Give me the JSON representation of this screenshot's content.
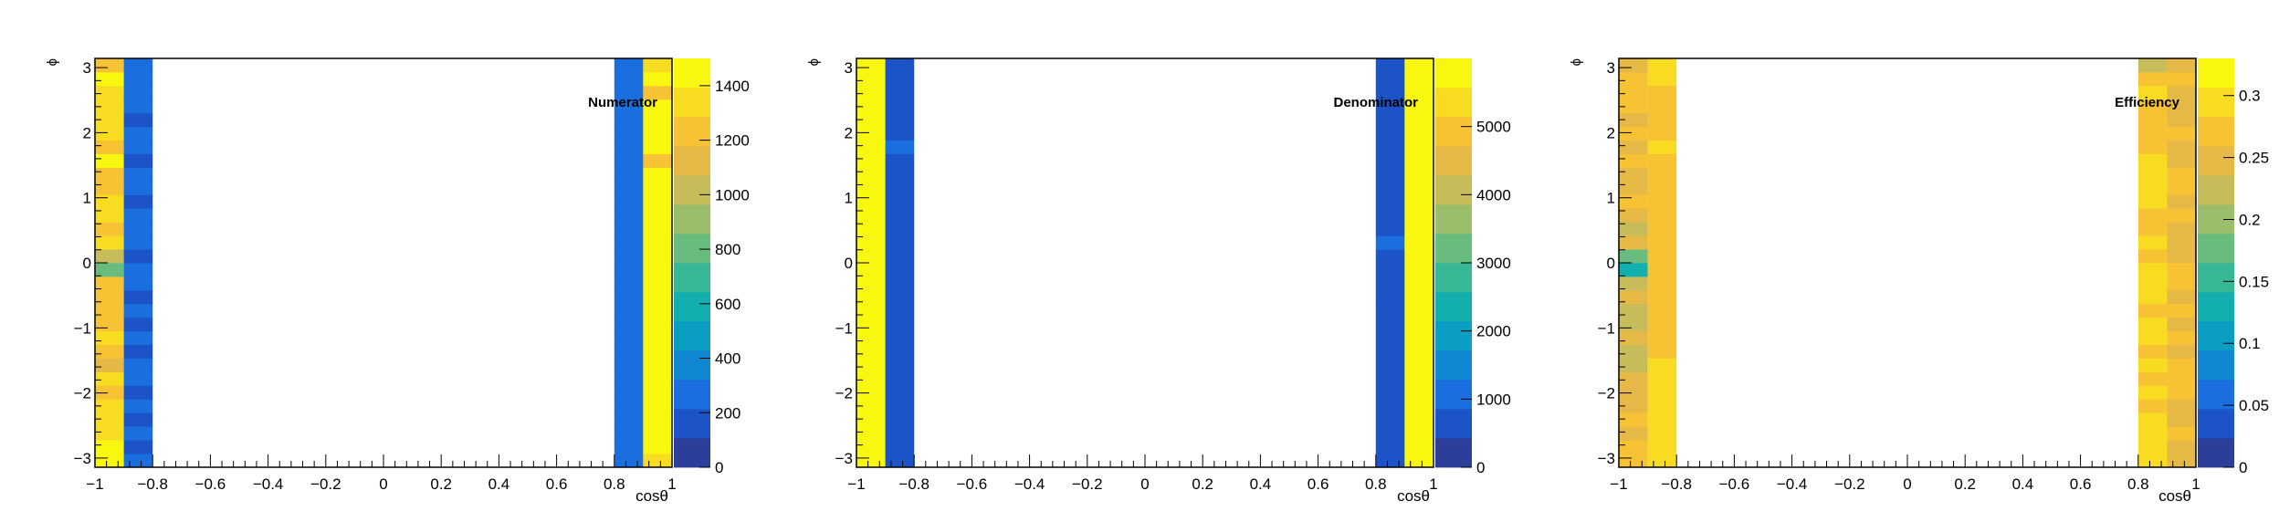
{
  "panels": [
    {
      "title": "Numerator",
      "xlabel": "cosθ",
      "ylabel": "ϕ"
    },
    {
      "title": "Denominator",
      "xlabel": "cosθ",
      "ylabel": "ϕ"
    },
    {
      "title": "Efficiency",
      "xlabel": "cosθ",
      "ylabel": "ϕ"
    }
  ],
  "palette": [
    "#2c3e9a",
    "#1c54c8",
    "#1a6ede",
    "#0f87d2",
    "#0b9ec2",
    "#13aeae",
    "#36b795",
    "#68bd7e",
    "#9bbe6a",
    "#c6bc5a",
    "#e6b846",
    "#f7c233",
    "#f7dc22",
    "#f9f70f"
  ],
  "chart_data": [
    {
      "type": "heatmap",
      "title": "Numerator",
      "xlabel": "cosθ",
      "ylabel": "ϕ",
      "x_edges": [
        -1,
        -0.9,
        -0.8,
        0.8,
        0.9,
        1
      ],
      "y_range": [
        -3.14159,
        3.14159
      ],
      "y_bins": 30,
      "xlim": [
        -1,
        1
      ],
      "zlim": [
        0,
        1500
      ],
      "z_ticks": [
        0,
        200,
        400,
        600,
        800,
        1000,
        1200,
        1400
      ],
      "z_tick_labels": [
        "0",
        "200",
        "400",
        "600",
        "800",
        "1000",
        "1200",
        "1400"
      ],
      "x_ticks": [
        -1,
        -0.8,
        -0.6,
        -0.4,
        -0.2,
        0,
        0.2,
        0.4,
        0.6,
        0.8,
        1
      ],
      "x_tick_labels": [
        "−1",
        "−0.8",
        "−0.6",
        "−0.4",
        "−0.2",
        "0",
        "0.2",
        "0.4",
        "0.6",
        "0.8",
        "1"
      ],
      "y_ticks": [
        -3,
        -2,
        -1,
        0,
        1,
        2,
        3
      ],
      "y_tick_labels": [
        "−3",
        "−2",
        "−1",
        "0",
        "1",
        "2",
        "3"
      ],
      "columns": [
        {
          "x_range": [
            -1,
            -0.9
          ],
          "values": [
            1420,
            1460,
            1310,
            1380,
            1300,
            1260,
            1290,
            1120,
            1250,
            1310,
            1200,
            1180,
            1260,
            1260,
            800,
            990,
            1380,
            1240,
            1300,
            1380,
            1240,
            1260,
            1420,
            1280,
            1330,
            1310,
            1370,
            1370,
            1440,
            1280
          ]
        },
        {
          "x_range": [
            -0.9,
            -0.8
          ],
          "values": [
            230,
            180,
            240,
            180,
            230,
            160,
            240,
            230,
            170,
            230,
            200,
            240,
            170,
            250,
            240,
            160,
            230,
            230,
            250,
            160,
            250,
            230,
            170,
            230,
            250,
            160,
            240,
            230,
            240,
            230
          ]
        },
        {
          "x_range": [
            0.8,
            0.9
          ],
          "values": [
            250,
            250,
            250,
            250,
            250,
            250,
            250,
            250,
            250,
            250,
            250,
            250,
            250,
            250,
            250,
            250,
            250,
            250,
            250,
            250,
            250,
            250,
            250,
            250,
            250,
            250,
            250,
            250,
            250,
            240
          ]
        },
        {
          "x_range": [
            0.9,
            1
          ],
          "values": [
            1320,
            1440,
            1500,
            1480,
            1470,
            1500,
            1490,
            1500,
            1490,
            1500,
            1470,
            1480,
            1470,
            1490,
            1480,
            1490,
            1480,
            1460,
            1490,
            1490,
            1480,
            1500,
            1280,
            1480,
            1400,
            1500,
            1450,
            1280,
            1500,
            1380
          ]
        }
      ]
    },
    {
      "type": "heatmap",
      "title": "Denominator",
      "xlabel": "cosθ",
      "ylabel": "ϕ",
      "x_edges": [
        -1,
        -0.9,
        -0.8,
        0.8,
        0.9,
        1
      ],
      "y_range": [
        -3.14159,
        3.14159
      ],
      "y_bins": 30,
      "xlim": [
        -1,
        1
      ],
      "zlim": [
        0,
        6000
      ],
      "z_ticks": [
        0,
        1000,
        2000,
        3000,
        4000,
        5000
      ],
      "z_tick_labels": [
        "0",
        "1000",
        "2000",
        "3000",
        "4000",
        "5000"
      ],
      "x_ticks": [
        -1,
        -0.8,
        -0.6,
        -0.4,
        -0.2,
        0,
        0.2,
        0.4,
        0.6,
        0.8,
        1
      ],
      "x_tick_labels": [
        "−1",
        "−0.8",
        "−0.6",
        "−0.4",
        "−0.2",
        "0",
        "0.2",
        "0.4",
        "0.6",
        "0.8",
        "1"
      ],
      "y_ticks": [
        -3,
        -2,
        -1,
        0,
        1,
        2,
        3
      ],
      "y_tick_labels": [
        "−3",
        "−2",
        "−1",
        "0",
        "1",
        "2",
        "3"
      ],
      "columns": [
        {
          "x_range": [
            -1,
            -0.9
          ],
          "values": [
            5950,
            5950,
            5950,
            5950,
            5950,
            5950,
            5950,
            5950,
            5950,
            5950,
            5950,
            5950,
            5950,
            5950,
            5950,
            5950,
            5950,
            5950,
            5950,
            5950,
            5950,
            5950,
            5950,
            5950,
            5950,
            5950,
            5950,
            5950,
            5950,
            5950
          ]
        },
        {
          "x_range": [
            -0.9,
            -0.8
          ],
          "values": [
            850,
            850,
            850,
            850,
            850,
            850,
            850,
            850,
            850,
            850,
            850,
            850,
            850,
            850,
            850,
            850,
            850,
            850,
            850,
            850,
            850,
            850,
            850,
            1000,
            850,
            850,
            850,
            850,
            850,
            850
          ]
        },
        {
          "x_range": [
            0.8,
            0.9
          ],
          "values": [
            850,
            850,
            850,
            850,
            850,
            850,
            850,
            850,
            850,
            850,
            850,
            850,
            850,
            850,
            850,
            850,
            1000,
            850,
            850,
            850,
            850,
            850,
            850,
            850,
            850,
            850,
            850,
            850,
            850,
            850
          ]
        },
        {
          "x_range": [
            0.9,
            1
          ],
          "values": [
            5950,
            5950,
            5950,
            5950,
            5950,
            5950,
            5950,
            5950,
            5950,
            5950,
            5950,
            5950,
            5950,
            5950,
            5950,
            5950,
            5950,
            5950,
            5950,
            5950,
            5950,
            5950,
            5950,
            5950,
            5950,
            5950,
            5950,
            5950,
            5950,
            5700
          ]
        }
      ]
    },
    {
      "type": "heatmap",
      "title": "Efficiency",
      "xlabel": "cosθ",
      "ylabel": "ϕ",
      "x_edges": [
        -1,
        -0.9,
        -0.8,
        0.8,
        0.9,
        1
      ],
      "y_range": [
        -3.14159,
        3.14159
      ],
      "y_bins": 30,
      "xlim": [
        -1,
        1
      ],
      "zlim": [
        0,
        0.33
      ],
      "z_ticks": [
        0,
        0.05,
        0.1,
        0.15,
        0.2,
        0.25,
        0.3
      ],
      "z_tick_labels": [
        "0",
        "0.05",
        "0.1",
        "0.15",
        "0.2",
        "0.25",
        "0.3"
      ],
      "x_ticks": [
        -1,
        -0.8,
        -0.6,
        -0.4,
        -0.2,
        0,
        0.2,
        0.4,
        0.6,
        0.8,
        1
      ],
      "x_tick_labels": [
        "−1",
        "−0.8",
        "−0.6",
        "−0.4",
        "−0.2",
        "0",
        "0.2",
        "0.4",
        "0.6",
        "0.8",
        "1"
      ],
      "y_ticks": [
        -3,
        -2,
        -1,
        0,
        1,
        2,
        3
      ],
      "y_tick_labels": [
        "−3",
        "−2",
        "−1",
        "0",
        "1",
        "2",
        "3"
      ],
      "columns": [
        {
          "x_range": [
            -1,
            -0.9
          ],
          "values": [
            0.26,
            0.27,
            0.25,
            0.26,
            0.25,
            0.24,
            0.24,
            0.22,
            0.23,
            0.25,
            0.23,
            0.22,
            0.24,
            0.23,
            0.14,
            0.17,
            0.25,
            0.22,
            0.25,
            0.26,
            0.24,
            0.24,
            0.27,
            0.25,
            0.26,
            0.25,
            0.26,
            0.26,
            0.27,
            0.25
          ]
        },
        {
          "x_range": [
            -0.9,
            -0.8
          ],
          "values": [
            0.3,
            0.3,
            0.3,
            0.3,
            0.3,
            0.3,
            0.3,
            0.3,
            0.28,
            0.28,
            0.28,
            0.28,
            0.28,
            0.28,
            0.28,
            0.28,
            0.28,
            0.28,
            0.28,
            0.28,
            0.28,
            0.28,
            0.28,
            0.3,
            0.28,
            0.28,
            0.28,
            0.28,
            0.3,
            0.3
          ]
        },
        {
          "x_range": [
            0.8,
            0.9
          ],
          "values": [
            0.29,
            0.3,
            0.29,
            0.29,
            0.28,
            0.3,
            0.28,
            0.29,
            0.28,
            0.3,
            0.29,
            0.28,
            0.29,
            0.29,
            0.29,
            0.28,
            0.29,
            0.28,
            0.28,
            0.29,
            0.29,
            0.3,
            0.29,
            0.28,
            0.28,
            0.28,
            0.28,
            0.29,
            0.28,
            0.22
          ]
        },
        {
          "x_range": [
            0.9,
            1
          ],
          "values": [
            0.25,
            0.25,
            0.26,
            0.25,
            0.25,
            0.26,
            0.26,
            0.26,
            0.25,
            0.26,
            0.25,
            0.26,
            0.25,
            0.26,
            0.26,
            0.25,
            0.25,
            0.25,
            0.26,
            0.25,
            0.26,
            0.26,
            0.25,
            0.25,
            0.26,
            0.25,
            0.25,
            0.25,
            0.26,
            0.24
          ]
        }
      ]
    }
  ]
}
